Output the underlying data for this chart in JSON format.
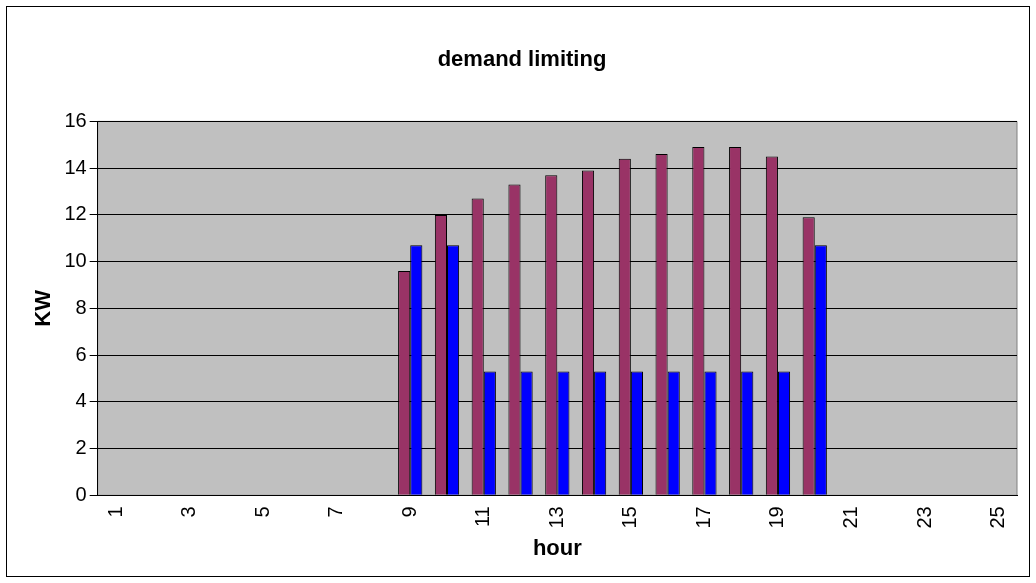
{
  "chart_data": {
    "type": "bar",
    "title": "demand limiting",
    "xlabel": "hour",
    "ylabel": "KW",
    "categories": [
      "1",
      null,
      "3",
      null,
      "5",
      null,
      "7",
      null,
      "9",
      null,
      "11",
      null,
      "13",
      null,
      "15",
      null,
      "17",
      null,
      "19",
      null,
      "21",
      null,
      "23",
      null,
      "25"
    ],
    "series": [
      {
        "color": "#993366",
        "values": [
          null,
          null,
          null,
          null,
          null,
          null,
          null,
          null,
          9.6,
          12,
          12.7,
          13.3,
          13.7,
          13.9,
          14.4,
          14.6,
          14.9,
          14.9,
          14.5,
          11.9,
          null,
          null,
          null,
          null,
          null
        ]
      },
      {
        "color": "#0000ff",
        "values": [
          null,
          null,
          null,
          null,
          null,
          null,
          null,
          null,
          10.7,
          10.7,
          5.3,
          5.3,
          5.3,
          5.3,
          5.3,
          5.3,
          5.3,
          5.3,
          5.3,
          10.7,
          null,
          null,
          null,
          null,
          null
        ]
      }
    ],
    "ylim": [
      0,
      16
    ],
    "yticks": [
      0,
      2,
      4,
      6,
      8,
      10,
      12,
      14,
      16
    ],
    "grid": "y",
    "legend": false
  }
}
